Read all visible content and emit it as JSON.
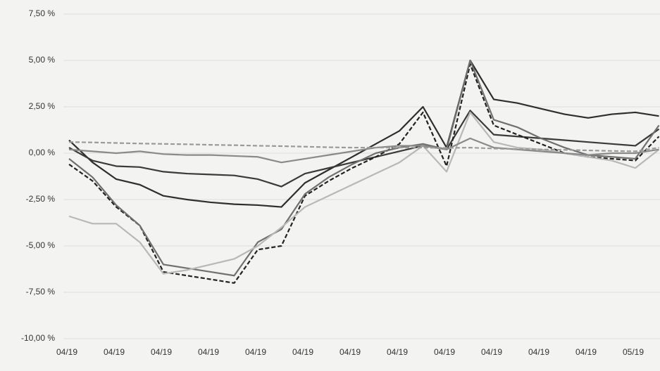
{
  "chart_data": {
    "type": "line",
    "categories": [
      "04/19",
      null,
      "04/19",
      null,
      "04/19",
      null,
      "04/19",
      null,
      "04/19",
      null,
      "04/19",
      null,
      "04/19",
      null,
      "04/19",
      null,
      "04/19",
      null,
      "04/19",
      null,
      "04/19",
      null,
      "04/19",
      null,
      "05/19",
      null
    ],
    "series": [
      {
        "color": "#2e2e2e",
        "dashed": false,
        "values": [
          0.7,
          -0.5,
          -1.4,
          -1.7,
          -2.3,
          -2.5,
          -2.65,
          -2.75,
          -2.8,
          -2.9,
          -1.6,
          -0.9,
          -0.2,
          0.5,
          1.2,
          2.5,
          0.3,
          5.0,
          2.9,
          2.7,
          2.4,
          2.1,
          1.9,
          2.1,
          2.2,
          2.0
        ]
      },
      {
        "color": "#3a3a3a",
        "dashed": false,
        "values": [
          0.3,
          -0.4,
          -0.7,
          -0.75,
          -1.0,
          -1.1,
          -1.15,
          -1.2,
          -1.4,
          -1.8,
          -1.1,
          -0.8,
          -0.5,
          -0.2,
          0.1,
          0.4,
          0.2,
          2.3,
          1.0,
          0.9,
          0.8,
          0.7,
          0.6,
          0.5,
          0.4,
          1.3
        ]
      },
      {
        "color": "#222222",
        "dashed": true,
        "values": [
          -0.6,
          -1.5,
          -2.9,
          -3.9,
          -6.4,
          -6.6,
          -6.8,
          -7.0,
          -5.2,
          -5.0,
          -2.3,
          -1.5,
          -0.8,
          -0.2,
          0.5,
          2.2,
          -0.7,
          4.8,
          1.5,
          1.0,
          0.5,
          0.0,
          -0.2,
          -0.3,
          -0.4,
          0.9
        ]
      },
      {
        "color": "#707070",
        "dashed": false,
        "values": [
          -0.3,
          -1.3,
          -2.8,
          -3.9,
          -6.0,
          -6.2,
          -6.4,
          -6.6,
          -4.8,
          -4.1,
          -2.2,
          -1.3,
          -0.6,
          0.0,
          0.3,
          0.5,
          0.2,
          5.0,
          1.8,
          1.4,
          0.8,
          0.3,
          -0.1,
          -0.2,
          -0.3,
          1.5
        ]
      },
      {
        "color": "#b8b8b8",
        "dashed": false,
        "values": [
          -3.4,
          -3.8,
          -3.8,
          -4.8,
          -6.5,
          -6.3,
          -6.0,
          -5.7,
          -5.0,
          -4.0,
          -2.9,
          -2.3,
          -1.7,
          -1.1,
          -0.5,
          0.4,
          -1.0,
          2.2,
          0.6,
          0.3,
          0.2,
          0.0,
          -0.2,
          -0.4,
          -0.8,
          0.2
        ]
      },
      {
        "color": "#8a8a8a",
        "dashed": false,
        "values": [
          0.2,
          0.1,
          0.0,
          0.1,
          -0.05,
          -0.1,
          -0.1,
          -0.15,
          -0.2,
          -0.5,
          -0.3,
          -0.1,
          0.1,
          0.3,
          0.4,
          0.4,
          0.2,
          0.8,
          0.3,
          0.2,
          0.1,
          0.0,
          -0.1,
          0.0,
          0.0,
          0.2
        ]
      },
      {
        "color": "#9a9a9a",
        "dashed": true,
        "values": [
          0.6,
          0.58,
          0.55,
          0.52,
          0.5,
          0.48,
          0.45,
          0.43,
          0.4,
          0.38,
          0.35,
          0.32,
          0.3,
          0.3,
          0.3,
          0.3,
          0.28,
          0.3,
          0.25,
          0.22,
          0.2,
          0.18,
          0.15,
          0.12,
          0.1,
          0.3
        ]
      }
    ],
    "ylim": [
      -10,
      7.5
    ],
    "yticks": [
      {
        "value": -10,
        "label": "-10,00 %"
      },
      {
        "value": -7.5,
        "label": "-7,50 %"
      },
      {
        "value": -5,
        "label": "-5,00 %"
      },
      {
        "value": -2.5,
        "label": "-2,50 %"
      },
      {
        "value": 0,
        "label": "0,00 %"
      },
      {
        "value": 2.5,
        "label": "2,50 %"
      },
      {
        "value": 5,
        "label": "5,00 %"
      },
      {
        "value": 7.5,
        "label": "7,50 %"
      }
    ],
    "grid": true
  }
}
